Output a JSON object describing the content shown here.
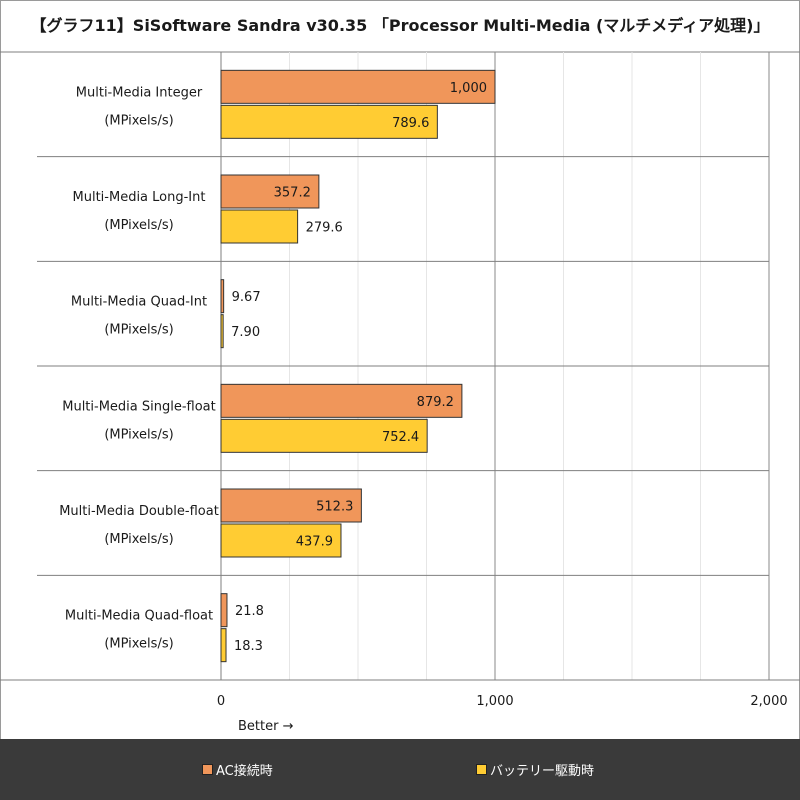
{
  "title": "【グラフ11】SiSoftware Sandra v30.35 「Processor Multi-Media (マルチメディア処理)」",
  "chart_data": {
    "type": "bar",
    "orientation": "horizontal",
    "categories": [
      [
        "Multi-Media Integer",
        "(MPixels/s)"
      ],
      [
        "Multi-Media Long-Int",
        "(MPixels/s)"
      ],
      [
        "Multi-Media Quad-Int",
        "(MPixels/s)"
      ],
      [
        "Multi-Media Single-float",
        "(MPixels/s)"
      ],
      [
        "Multi-Media Double-float",
        "(MPixels/s)"
      ],
      [
        "Multi-Media Quad-float",
        "(MPixels/s)"
      ]
    ],
    "series": [
      {
        "name": "AC接続時",
        "color": "#f0965a",
        "values": [
          1000,
          357.2,
          9.67,
          879.2,
          512.3,
          21.8
        ],
        "labels": [
          "1,000",
          "357.2",
          "9.67",
          "879.2",
          "512.3",
          "21.8"
        ]
      },
      {
        "name": "バッテリー駆動時",
        "color": "#ffcc33",
        "values": [
          789.6,
          279.6,
          7.9,
          752.4,
          437.9,
          18.3
        ],
        "labels": [
          "789.6",
          "279.6",
          "7.90",
          "752.4",
          "437.9",
          "18.3"
        ]
      }
    ],
    "xlim": [
      0,
      2000
    ],
    "xticks": [
      0,
      1000,
      2000
    ],
    "xtick_labels": [
      "0",
      "1,000",
      "2,000"
    ],
    "xlabel": "Better →",
    "grid": true,
    "legend_position": "bottom"
  }
}
